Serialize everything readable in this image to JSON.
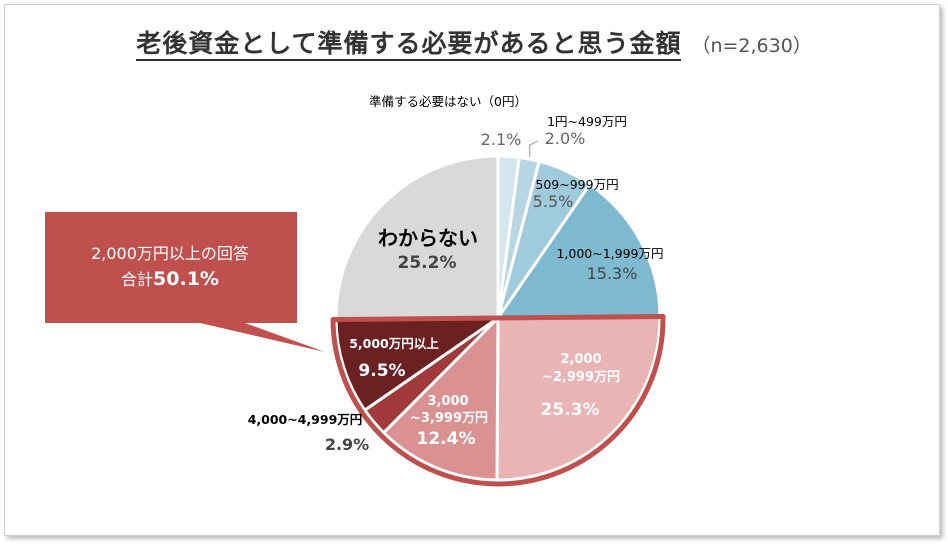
{
  "chart_data": {
    "type": "pie",
    "title": "老後資金として準備する必要があると思う金額",
    "subtitle": "（n=2,630）",
    "unit": "%",
    "slices": [
      {
        "label": "準備する必要はない（0円）",
        "value": 2.1,
        "value_label": "2.1%",
        "color": "#d5e6ef"
      },
      {
        "label": "1円~499万円",
        "value": 2.0,
        "value_label": "2.0%",
        "color": "#b6d6e4"
      },
      {
        "label": "509~999万円",
        "value": 5.5,
        "value_label": "5.5%",
        "color": "#9fcbdc"
      },
      {
        "label": "1,000~1,999万円",
        "value": 15.3,
        "value_label": "15.3%",
        "color": "#7db9cf"
      },
      {
        "label": "2,000 ~2,999万円",
        "label_lines": [
          "2,000",
          "~2,999万円"
        ],
        "value": 25.3,
        "value_label": "25.3%",
        "color": "#e8b4b4"
      },
      {
        "label": "3,000 ~3,999万円",
        "label_lines": [
          "3,000",
          "~3,999万円"
        ],
        "value": 12.4,
        "value_label": "12.4%",
        "color": "#d99191"
      },
      {
        "label": "4,000~4,999万円",
        "value": 2.9,
        "value_label": "2.9%",
        "color": "#a03a3c"
      },
      {
        "label": "5,000万円以上",
        "value": 9.5,
        "value_label": "9.5%",
        "color": "#6b2022"
      },
      {
        "label": "わからない",
        "value": 25.2,
        "value_label": "25.2%",
        "color": "#d9d9d9"
      }
    ],
    "callout": {
      "line1": "2,000万円以上の回答",
      "line2_prefix": "合計",
      "line2_value": "50.1%",
      "color": "#c0504d"
    },
    "highlight_color": "#c0504d"
  }
}
